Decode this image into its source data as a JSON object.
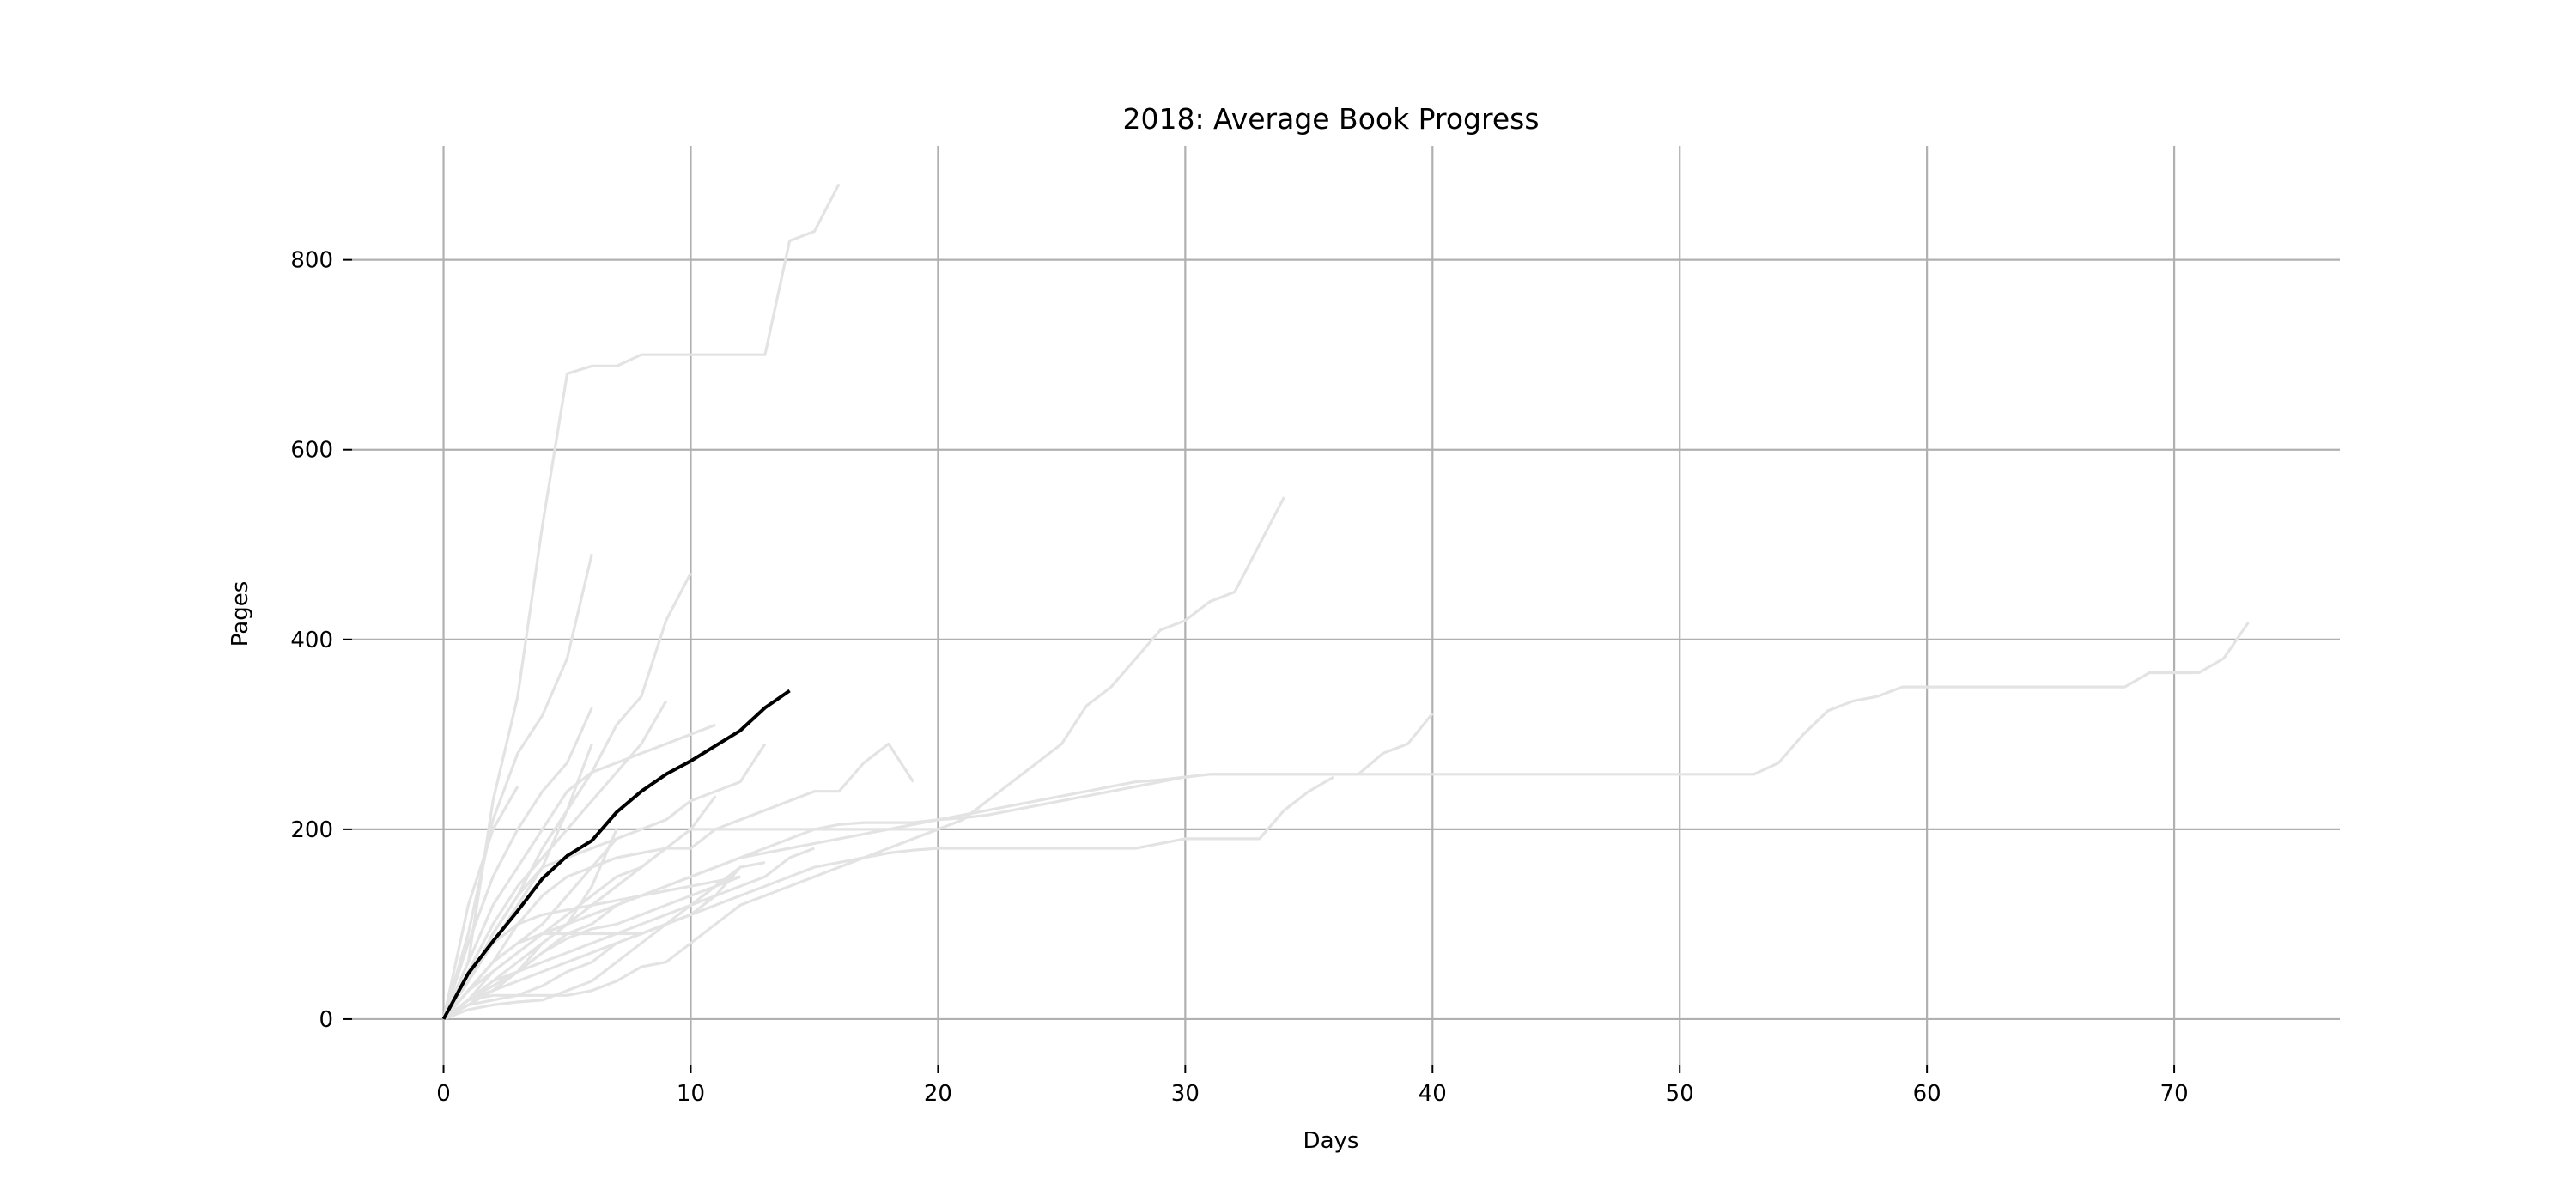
{
  "chart_data": {
    "type": "line",
    "title": "2018: Average Book Progress",
    "xlabel": "Days",
    "ylabel": "Pages",
    "xlim": [
      -3.7,
      76.7
    ],
    "ylim": [
      -48,
      920
    ],
    "xticks": [
      0,
      10,
      20,
      30,
      40,
      50,
      60,
      70
    ],
    "yticks": [
      0,
      200,
      400,
      600,
      800
    ],
    "grid": true,
    "legend": "none",
    "colors": {
      "books": "#e3e3e3",
      "average": "#000000",
      "grid": "#b0b0b0"
    },
    "books": [
      {
        "x": [
          0,
          1,
          2,
          3,
          4,
          5,
          6,
          7,
          8,
          9,
          10,
          11,
          12,
          13,
          14,
          15,
          16
        ],
        "y": [
          0,
          60,
          230,
          340,
          520,
          680,
          688,
          688,
          700,
          700,
          700,
          700,
          700,
          700,
          820,
          830,
          880
        ]
      },
      {
        "x": [
          0,
          1,
          2,
          3,
          4,
          5,
          6
        ],
        "y": [
          0,
          90,
          210,
          280,
          320,
          380,
          490
        ]
      },
      {
        "x": [
          0,
          1,
          2,
          3,
          4,
          5,
          6,
          7,
          8,
          9,
          10
        ],
        "y": [
          0,
          40,
          90,
          130,
          180,
          220,
          260,
          310,
          340,
          420,
          470
        ]
      },
      {
        "x": [
          0,
          1,
          2,
          3,
          4,
          5,
          6,
          7,
          8,
          9,
          10,
          11,
          12,
          13,
          14,
          15,
          16,
          17,
          18,
          19,
          20,
          21,
          22,
          23,
          24,
          25,
          26,
          27,
          28,
          29,
          30,
          31,
          32,
          33,
          34
        ],
        "y": [
          0,
          20,
          50,
          70,
          90,
          100,
          120,
          140,
          160,
          180,
          200,
          200,
          200,
          200,
          200,
          200,
          200,
          200,
          200,
          200,
          200,
          210,
          230,
          250,
          270,
          290,
          330,
          350,
          380,
          410,
          420,
          440,
          450,
          500,
          550
        ]
      },
      {
        "x": [
          0,
          1,
          2,
          3,
          4,
          5,
          6,
          7,
          8,
          9,
          10,
          11,
          12,
          13,
          14,
          15,
          16,
          17,
          18,
          19,
          20,
          21,
          22,
          23,
          24,
          25,
          26,
          27,
          28,
          29,
          30,
          31,
          32,
          33,
          34,
          35,
          36,
          37,
          38,
          39,
          40
        ],
        "y": [
          0,
          15,
          30,
          50,
          70,
          90,
          100,
          120,
          130,
          140,
          150,
          160,
          170,
          180,
          190,
          200,
          205,
          207,
          207,
          207,
          210,
          212,
          215,
          220,
          225,
          230,
          235,
          240,
          245,
          250,
          255,
          258,
          258,
          258,
          258,
          258,
          258,
          258,
          280,
          290,
          322
        ]
      },
      {
        "x": [
          0,
          1,
          2,
          3,
          4,
          5,
          6,
          7,
          8,
          9,
          10,
          11,
          12,
          13,
          14,
          15,
          16,
          17,
          18,
          19,
          20,
          21,
          22,
          23,
          24,
          25,
          26,
          27,
          28,
          29,
          30,
          31,
          32,
          33,
          34,
          35,
          36,
          37,
          38,
          39,
          40,
          41,
          42,
          43,
          44,
          45,
          46,
          47,
          48,
          49,
          50,
          51,
          52,
          53,
          54,
          55,
          56,
          57,
          58,
          59,
          60,
          61,
          62,
          63,
          64,
          65,
          66,
          67,
          68,
          69,
          70,
          71,
          72,
          73
        ],
        "y": [
          0,
          20,
          40,
          60,
          80,
          100,
          110,
          120,
          130,
          140,
          150,
          160,
          170,
          175,
          180,
          185,
          190,
          195,
          200,
          205,
          210,
          215,
          220,
          225,
          230,
          235,
          240,
          245,
          250,
          252,
          255,
          258,
          258,
          258,
          258,
          258,
          258,
          258,
          258,
          258,
          258,
          258,
          258,
          258,
          258,
          258,
          258,
          258,
          258,
          258,
          258,
          258,
          258,
          258,
          270,
          300,
          325,
          335,
          340,
          350,
          350,
          350,
          350,
          350,
          350,
          350,
          350,
          350,
          350,
          365,
          365,
          365,
          380,
          418
        ]
      },
      {
        "x": [
          0,
          1,
          2,
          3,
          4,
          5,
          6,
          7,
          8,
          9,
          10,
          11,
          12,
          13,
          14,
          15,
          16,
          17,
          18,
          19
        ],
        "y": [
          0,
          30,
          60,
          100,
          130,
          150,
          160,
          170,
          175,
          180,
          180,
          200,
          210,
          220,
          230,
          240,
          240,
          270,
          290,
          250
        ]
      },
      {
        "x": [
          0,
          1,
          2,
          3,
          4,
          5,
          6,
          7,
          8,
          9,
          10,
          11,
          12,
          13,
          14,
          15,
          16,
          17,
          18,
          19,
          20,
          21,
          22,
          23,
          24,
          25,
          26,
          27,
          28,
          29,
          30,
          31,
          32,
          33,
          34,
          35,
          36
        ],
        "y": [
          0,
          20,
          30,
          40,
          50,
          60,
          70,
          80,
          90,
          100,
          110,
          120,
          130,
          140,
          150,
          160,
          165,
          170,
          175,
          178,
          180,
          180,
          180,
          180,
          180,
          180,
          180,
          180,
          180,
          185,
          190,
          190,
          190,
          190,
          220,
          240,
          255
        ]
      },
      {
        "x": [
          0,
          1,
          2,
          3,
          4,
          5,
          6,
          7,
          8,
          9,
          10,
          11,
          12,
          13,
          14,
          15,
          16,
          17,
          18,
          19,
          20
        ],
        "y": [
          0,
          15,
          20,
          25,
          25,
          25,
          30,
          40,
          55,
          60,
          80,
          100,
          120,
          130,
          140,
          150,
          160,
          170,
          180,
          190,
          200
        ]
      },
      {
        "x": [
          0,
          1,
          2,
          3,
          4,
          5,
          6,
          7,
          8,
          9,
          10,
          11,
          12,
          13
        ],
        "y": [
          0,
          40,
          90,
          130,
          160,
          170,
          180,
          190,
          200,
          210,
          230,
          240,
          250,
          290
        ]
      },
      {
        "x": [
          0,
          1,
          2,
          3,
          4,
          5,
          6,
          7,
          8,
          9,
          10,
          11
        ],
        "y": [
          0,
          60,
          120,
          160,
          200,
          240,
          260,
          270,
          280,
          290,
          300,
          310
        ]
      },
      {
        "x": [
          0,
          1,
          2,
          3,
          4,
          5,
          6,
          7,
          8,
          9,
          10,
          11
        ],
        "y": [
          0,
          30,
          50,
          70,
          90,
          110,
          130,
          150,
          160,
          180,
          200,
          235
        ]
      },
      {
        "x": [
          0,
          1,
          2,
          3,
          4,
          5,
          6,
          7,
          8,
          9
        ],
        "y": [
          0,
          50,
          100,
          140,
          170,
          200,
          230,
          260,
          290,
          335
        ]
      },
      {
        "x": [
          0,
          1,
          2,
          3,
          4,
          5,
          6
        ],
        "y": [
          0,
          80,
          150,
          200,
          240,
          270,
          328
        ]
      },
      {
        "x": [
          0,
          1,
          2,
          3,
          4,
          5,
          6
        ],
        "y": [
          0,
          40,
          80,
          120,
          160,
          220,
          290
        ]
      },
      {
        "x": [
          0,
          1,
          2,
          3
        ],
        "y": [
          0,
          120,
          200,
          245
        ]
      },
      {
        "x": [
          0,
          1,
          2,
          3,
          4,
          5,
          6,
          7,
          8,
          9,
          10
        ],
        "y": [
          0,
          30,
          60,
          80,
          90,
          90,
          90,
          90,
          90,
          100,
          110
        ]
      },
      {
        "x": [
          0,
          1,
          2,
          3,
          4,
          5,
          6,
          7,
          8,
          9,
          10,
          11,
          12,
          13
        ],
        "y": [
          0,
          10,
          15,
          18,
          20,
          30,
          40,
          60,
          80,
          100,
          120,
          140,
          160,
          165
        ]
      },
      {
        "x": [
          0,
          1,
          2,
          3,
          4,
          5,
          6,
          7,
          8,
          9,
          10,
          11,
          12,
          13,
          14,
          15
        ],
        "y": [
          0,
          20,
          35,
          50,
          60,
          70,
          80,
          90,
          100,
          110,
          120,
          130,
          140,
          150,
          170,
          180
        ]
      },
      {
        "x": [
          0,
          1,
          2,
          3,
          4,
          5,
          6,
          7,
          8,
          9,
          10,
          11,
          12
        ],
        "y": [
          0,
          40,
          80,
          100,
          110,
          115,
          120,
          125,
          130,
          135,
          140,
          145,
          150
        ]
      },
      {
        "x": [
          0,
          1,
          2,
          3,
          4,
          5,
          6,
          7
        ],
        "y": [
          0,
          30,
          60,
          80,
          100,
          130,
          160,
          190
        ]
      },
      {
        "x": [
          0,
          1,
          2,
          3,
          4,
          5,
          6,
          7,
          8,
          9,
          10,
          11,
          12
        ],
        "y": [
          0,
          15,
          30,
          50,
          70,
          85,
          95,
          100,
          110,
          120,
          130,
          140,
          150
        ]
      },
      {
        "x": [
          0,
          1,
          2,
          3,
          4,
          5,
          6,
          7
        ],
        "y": [
          0,
          20,
          40,
          50,
          80,
          100,
          140,
          200
        ]
      },
      {
        "x": [
          0,
          1,
          2,
          3,
          4,
          5,
          6,
          7,
          8,
          9,
          10,
          11,
          12
        ],
        "y": [
          0,
          20,
          25,
          25,
          35,
          50,
          60,
          80,
          90,
          100,
          110,
          130,
          160
        ]
      }
    ],
    "average": {
      "x": [
        0,
        1,
        2,
        3,
        4,
        5,
        6,
        7,
        8,
        9,
        10,
        11,
        12,
        13,
        14
      ],
      "y": [
        0,
        48,
        82,
        114,
        148,
        172,
        188,
        218,
        240,
        258,
        272,
        288,
        304,
        328,
        346
      ]
    }
  }
}
